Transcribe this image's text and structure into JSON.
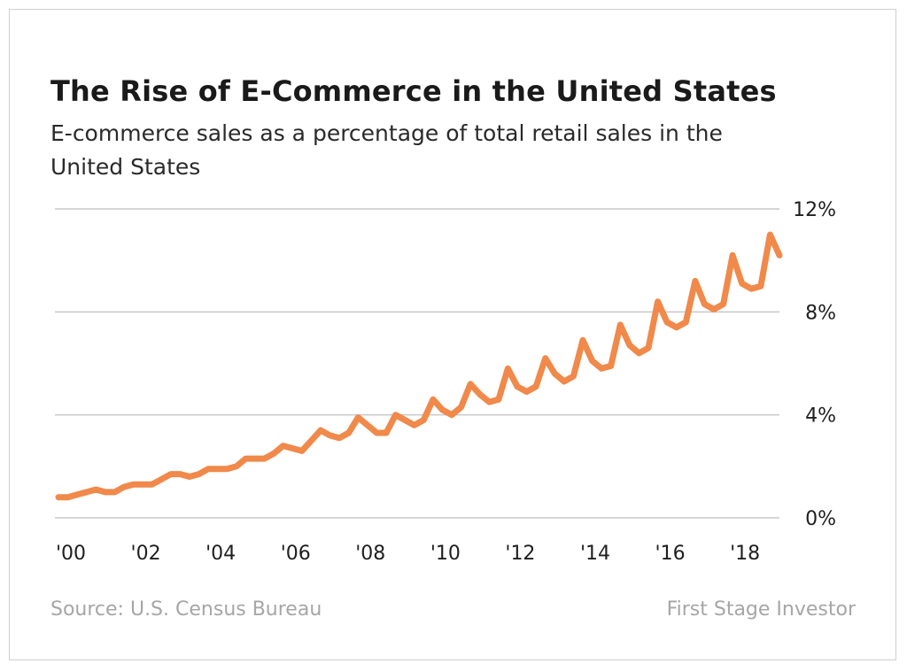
{
  "chart_data": {
    "type": "line",
    "title": "The Rise of E-Commerce in the United States",
    "subtitle": "E-commerce sales as a percentage of total retail sales in the United States",
    "source": "Source: U.S. Census Bureau",
    "credit": "First Stage Investor",
    "xlabel": "",
    "ylabel": "",
    "x_tick_labels": [
      "'00",
      "'02",
      "'04",
      "'06",
      "'08",
      "'10",
      "'12",
      "'14",
      "'16",
      "'18"
    ],
    "x_tick_years": [
      2000,
      2002,
      2004,
      2006,
      2008,
      2010,
      2012,
      2014,
      2016,
      2018
    ],
    "y_ticks": [
      {
        "value": 0,
        "label": "0%"
      },
      {
        "value": 4,
        "label": "4%"
      },
      {
        "value": 8,
        "label": "8%"
      },
      {
        "value": 12,
        "label": "12%"
      }
    ],
    "xlim": [
      2000,
      2019.25
    ],
    "ylim": [
      0,
      12
    ],
    "grid": true,
    "legend": "none",
    "series": [
      {
        "color": "#f0894a",
        "x": [
          2000.0,
          2000.25,
          2000.5,
          2000.75,
          2001.0,
          2001.25,
          2001.5,
          2001.75,
          2002.0,
          2002.25,
          2002.5,
          2002.75,
          2003.0,
          2003.25,
          2003.5,
          2003.75,
          2004.0,
          2004.25,
          2004.5,
          2004.75,
          2005.0,
          2005.25,
          2005.5,
          2005.75,
          2006.0,
          2006.25,
          2006.5,
          2006.75,
          2007.0,
          2007.25,
          2007.5,
          2007.75,
          2008.0,
          2008.25,
          2008.5,
          2008.75,
          2009.0,
          2009.25,
          2009.5,
          2009.75,
          2010.0,
          2010.25,
          2010.5,
          2010.75,
          2011.0,
          2011.25,
          2011.5,
          2011.75,
          2012.0,
          2012.25,
          2012.5,
          2012.75,
          2013.0,
          2013.25,
          2013.5,
          2013.75,
          2014.0,
          2014.25,
          2014.5,
          2014.75,
          2015.0,
          2015.25,
          2015.5,
          2015.75,
          2016.0,
          2016.25,
          2016.5,
          2016.75,
          2017.0,
          2017.25,
          2017.5,
          2017.75,
          2018.0,
          2018.25,
          2018.5,
          2018.75,
          2019.0,
          2019.25
        ],
        "y": [
          0.8,
          0.8,
          0.9,
          1.0,
          1.1,
          1.0,
          1.0,
          1.2,
          1.3,
          1.3,
          1.3,
          1.5,
          1.7,
          1.7,
          1.6,
          1.7,
          1.9,
          1.9,
          1.9,
          2.0,
          2.3,
          2.3,
          2.3,
          2.5,
          2.8,
          2.7,
          2.6,
          3.0,
          3.4,
          3.2,
          3.1,
          3.3,
          3.9,
          3.6,
          3.3,
          3.3,
          4.0,
          3.8,
          3.6,
          3.8,
          4.6,
          4.2,
          4.0,
          4.3,
          5.2,
          4.8,
          4.5,
          4.6,
          5.8,
          5.1,
          4.9,
          5.1,
          6.2,
          5.6,
          5.3,
          5.5,
          6.9,
          6.1,
          5.8,
          5.9,
          7.5,
          6.7,
          6.4,
          6.6,
          8.4,
          7.6,
          7.4,
          7.6,
          9.2,
          8.3,
          8.1,
          8.3,
          10.2,
          9.1,
          8.9,
          9.0,
          11.0,
          10.2
        ]
      }
    ]
  }
}
